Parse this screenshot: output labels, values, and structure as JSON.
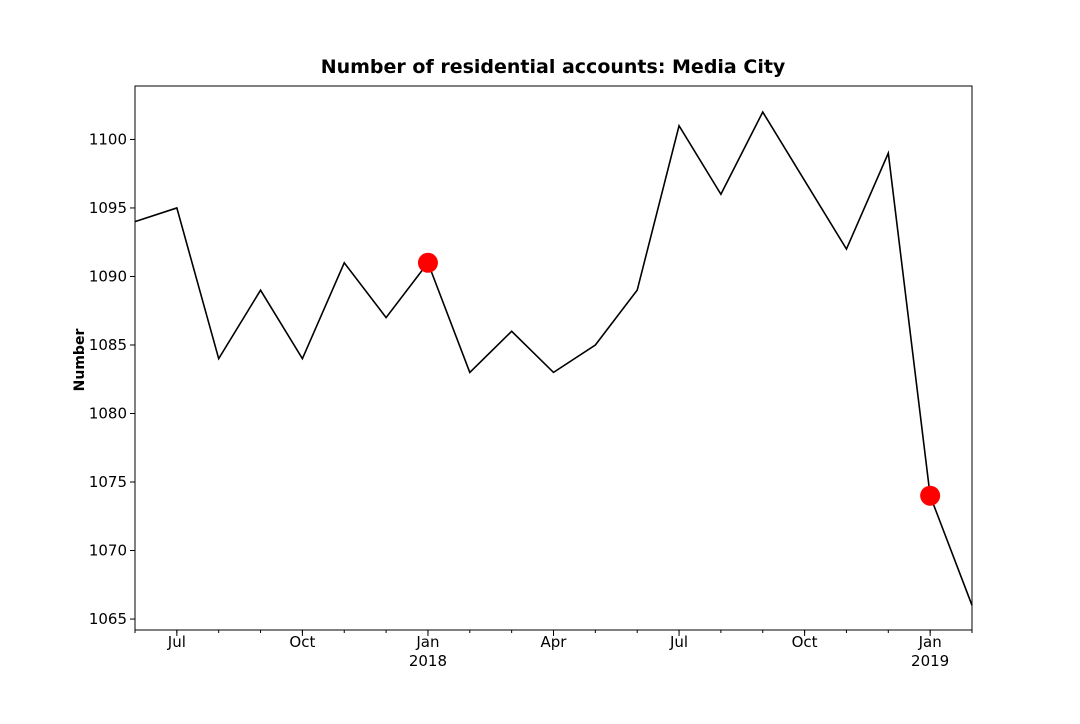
{
  "chart_data": {
    "type": "line",
    "title": "Number of residential accounts: Media City",
    "y_label": "Number",
    "x": [
      "2017-06",
      "2017-07",
      "2017-08",
      "2017-09",
      "2017-10",
      "2017-11",
      "2017-12",
      "2018-01",
      "2018-02",
      "2018-03",
      "2018-04",
      "2018-05",
      "2018-06",
      "2018-07",
      "2018-08",
      "2018-09",
      "2018-10",
      "2018-11",
      "2018-12",
      "2019-01",
      "2019-02"
    ],
    "series": [
      {
        "color": "#000000",
        "values": [
          1094,
          1095,
          1084,
          1089,
          1084,
          1091,
          1087,
          1091,
          1083,
          1086,
          1083,
          1085,
          1089,
          1101,
          1096,
          1102,
          1097,
          1092,
          1099,
          1074,
          1066
        ]
      }
    ],
    "markers": {
      "color": "#ff0000",
      "x": [
        "2018-01",
        "2019-01"
      ],
      "values": [
        1091,
        1074
      ]
    },
    "xlim": [
      "2017-06",
      "2019-02"
    ],
    "xticks": [
      {
        "value": "2017-07",
        "label": "Jul"
      },
      {
        "value": "2017-10",
        "label": "Oct"
      },
      {
        "value": "2018-01",
        "label": "Jan",
        "sublabel": "2018"
      },
      {
        "value": "2018-04",
        "label": "Apr"
      },
      {
        "value": "2018-07",
        "label": "Jul"
      },
      {
        "value": "2018-10",
        "label": "Oct"
      },
      {
        "value": "2019-01",
        "label": "Jan",
        "sublabel": "2019"
      }
    ],
    "ylim": [
      1064.2,
      1103.9
    ],
    "yticks": [
      1065,
      1070,
      1075,
      1080,
      1085,
      1090,
      1095,
      1100
    ]
  }
}
